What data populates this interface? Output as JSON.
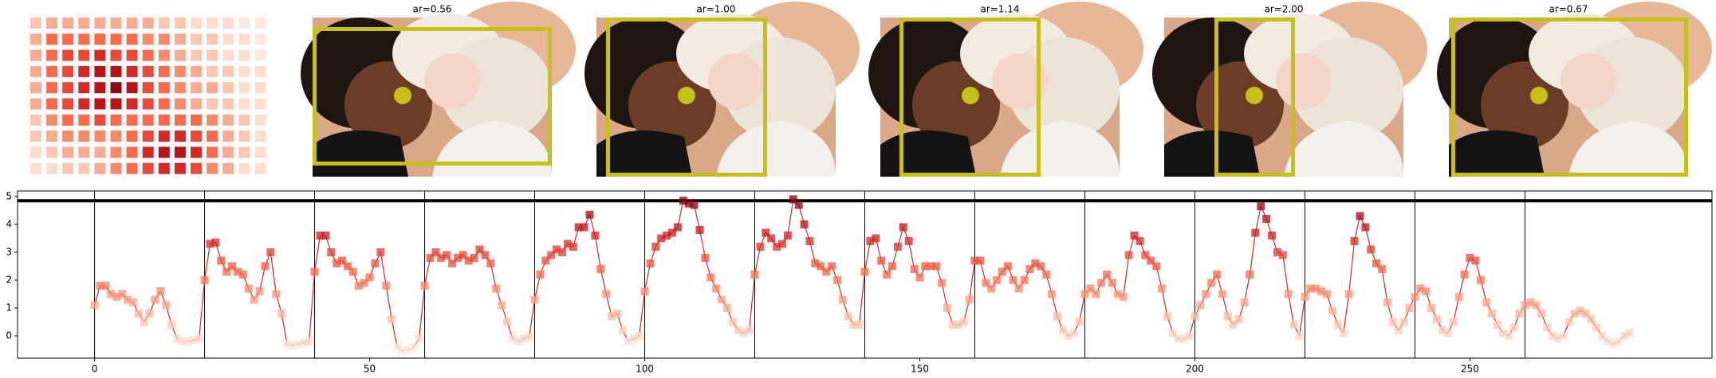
{
  "chart_data": [
    {
      "type": "heatmap",
      "cmap": "Reds",
      "values": [
        [
          0.2,
          0.3,
          0.3,
          0.3,
          0.3,
          0.3,
          0.3,
          0.3,
          0.2,
          0.2,
          0.1,
          0.1,
          0.1,
          0.05,
          0.05
        ],
        [
          0.3,
          0.5,
          0.5,
          0.5,
          0.5,
          0.5,
          0.5,
          0.4,
          0.4,
          0.3,
          0.2,
          0.2,
          0.1,
          0.1,
          0.05
        ],
        [
          0.3,
          0.5,
          0.6,
          0.6,
          0.7,
          0.6,
          0.6,
          0.5,
          0.4,
          0.3,
          0.2,
          0.2,
          0.1,
          0.1,
          0.05
        ],
        [
          0.3,
          0.5,
          0.6,
          0.7,
          0.8,
          0.8,
          0.7,
          0.6,
          0.5,
          0.4,
          0.3,
          0.2,
          0.2,
          0.1,
          0.1
        ],
        [
          0.3,
          0.5,
          0.6,
          0.7,
          0.8,
          0.9,
          0.8,
          0.6,
          0.5,
          0.4,
          0.3,
          0.3,
          0.2,
          0.1,
          0.1
        ],
        [
          0.3,
          0.5,
          0.6,
          0.7,
          0.8,
          0.8,
          0.7,
          0.6,
          0.5,
          0.4,
          0.3,
          0.2,
          0.2,
          0.1,
          0.1
        ],
        [
          0.2,
          0.4,
          0.5,
          0.5,
          0.6,
          0.5,
          0.5,
          0.5,
          0.5,
          0.5,
          0.5,
          0.4,
          0.3,
          0.2,
          0.1
        ],
        [
          0.2,
          0.3,
          0.4,
          0.4,
          0.4,
          0.4,
          0.5,
          0.6,
          0.7,
          0.7,
          0.6,
          0.5,
          0.3,
          0.2,
          0.1
        ],
        [
          0.1,
          0.2,
          0.3,
          0.3,
          0.3,
          0.4,
          0.5,
          0.7,
          0.8,
          0.8,
          0.7,
          0.5,
          0.3,
          0.2,
          0.1
        ],
        [
          0.1,
          0.1,
          0.2,
          0.2,
          0.3,
          0.4,
          0.5,
          0.6,
          0.7,
          0.7,
          0.6,
          0.4,
          0.3,
          0.1,
          0.1
        ]
      ]
    },
    {
      "type": "image",
      "title": "ar=0.56"
    },
    {
      "type": "image",
      "title": "ar=1.00"
    },
    {
      "type": "image",
      "title": "ar=1.14"
    },
    {
      "type": "image",
      "title": "ar=2.00"
    },
    {
      "type": "image",
      "title": "ar=0.67"
    },
    {
      "type": "line",
      "color": "#d62728",
      "cmap": "Reds",
      "xlim": [
        -14,
        294
      ],
      "ylim": [
        -0.8,
        5.2
      ],
      "xticks": [
        0,
        50,
        100,
        150,
        200,
        250
      ],
      "yticks": [
        0,
        1,
        2,
        3,
        4,
        5
      ],
      "vlines": [
        0,
        20,
        40,
        60,
        80,
        100,
        120,
        140,
        160,
        180,
        200,
        220,
        240,
        260
      ],
      "hline": 4.85,
      "x": [
        0,
        1,
        2,
        3,
        4,
        5,
        6,
        7,
        8,
        9,
        10,
        11,
        12,
        13,
        14,
        15,
        16,
        17,
        18,
        19,
        20,
        21,
        22,
        23,
        24,
        25,
        26,
        27,
        28,
        29,
        30,
        31,
        32,
        33,
        34,
        35,
        36,
        37,
        38,
        39,
        40,
        41,
        42,
        43,
        44,
        45,
        46,
        47,
        48,
        49,
        50,
        51,
        52,
        53,
        54,
        55,
        56,
        57,
        58,
        59,
        60,
        61,
        62,
        63,
        64,
        65,
        66,
        67,
        68,
        69,
        70,
        71,
        72,
        73,
        74,
        75,
        76,
        77,
        78,
        79,
        80,
        81,
        82,
        83,
        84,
        85,
        86,
        87,
        88,
        89,
        90,
        91,
        92,
        93,
        94,
        95,
        96,
        97,
        98,
        99,
        100,
        101,
        102,
        103,
        104,
        105,
        106,
        107,
        108,
        109,
        110,
        111,
        112,
        113,
        114,
        115,
        116,
        117,
        118,
        119,
        120,
        121,
        122,
        123,
        124,
        125,
        126,
        127,
        128,
        129,
        130,
        131,
        132,
        133,
        134,
        135,
        136,
        137,
        138,
        139,
        140,
        141,
        142,
        143,
        144,
        145,
        146,
        147,
        148,
        149,
        150,
        151,
        152,
        153,
        154,
        155,
        156,
        157,
        158,
        159,
        160,
        161,
        162,
        163,
        164,
        165,
        166,
        167,
        168,
        169,
        170,
        171,
        172,
        173,
        174,
        175,
        176,
        177,
        178,
        179,
        180,
        181,
        182,
        183,
        184,
        185,
        186,
        187,
        188,
        189,
        190,
        191,
        192,
        193,
        194,
        195,
        196,
        197,
        198,
        199,
        200,
        201,
        202,
        203,
        204,
        205,
        206,
        207,
        208,
        209,
        210,
        211,
        212,
        213,
        214,
        215,
        216,
        217,
        218,
        219,
        220,
        221,
        222,
        223,
        224,
        225,
        226,
        227,
        228,
        229,
        230,
        231,
        232,
        233,
        234,
        235,
        236,
        237,
        238,
        239,
        240,
        241,
        242,
        243,
        244,
        245,
        246,
        247,
        248,
        249,
        250,
        251,
        252,
        253,
        254,
        255,
        256,
        257,
        258,
        259,
        260,
        261,
        262,
        263,
        264,
        265,
        266,
        267,
        268,
        269,
        270,
        271,
        272,
        273,
        274,
        275,
        276,
        277,
        278,
        279
      ],
      "values": [
        1.1,
        1.8,
        1.8,
        1.5,
        1.4,
        1.5,
        1.3,
        1.2,
        0.8,
        0.5,
        0.8,
        1.3,
        1.6,
        1.1,
        0.4,
        -0.1,
        -0.2,
        -0.2,
        -0.15,
        -0.1,
        2.0,
        3.3,
        3.35,
        2.7,
        2.3,
        2.5,
        2.3,
        2.2,
        1.7,
        1.3,
        1.6,
        2.5,
        3.0,
        1.5,
        0.8,
        -0.3,
        -0.35,
        -0.3,
        -0.25,
        -0.2,
        2.3,
        3.6,
        3.6,
        3.0,
        2.6,
        2.7,
        2.5,
        2.3,
        1.8,
        1.9,
        2.1,
        2.6,
        3.0,
        1.8,
        0.6,
        -0.4,
        -0.55,
        -0.5,
        -0.4,
        -0.1,
        1.8,
        2.8,
        3.0,
        2.8,
        2.9,
        2.6,
        2.8,
        2.9,
        2.7,
        2.8,
        3.1,
        2.9,
        2.6,
        1.7,
        1.1,
        0.5,
        -0.1,
        -0.2,
        -0.1,
        -0.05,
        1.3,
        2.2,
        2.7,
        2.9,
        3.1,
        3.0,
        3.3,
        3.2,
        3.9,
        3.9,
        4.35,
        3.6,
        2.4,
        1.5,
        0.7,
        0.8,
        0.2,
        -0.2,
        -0.1,
        0.0,
        1.6,
        2.6,
        3.2,
        3.5,
        3.6,
        3.7,
        3.9,
        4.85,
        4.75,
        4.7,
        3.8,
        2.8,
        2.1,
        1.7,
        1.3,
        1.0,
        0.5,
        0.2,
        0.1,
        0.2,
        2.2,
        3.2,
        3.7,
        3.5,
        3.2,
        3.3,
        3.6,
        4.9,
        4.7,
        4.0,
        3.4,
        2.6,
        2.5,
        2.3,
        2.5,
        2.0,
        1.3,
        0.7,
        0.4,
        0.4,
        2.3,
        3.4,
        3.5,
        2.7,
        2.2,
        2.5,
        3.2,
        3.9,
        3.4,
        2.4,
        2.1,
        2.5,
        2.5,
        2.5,
        1.9,
        1.0,
        0.4,
        0.4,
        0.5,
        1.3,
        2.7,
        2.7,
        1.9,
        1.7,
        2.0,
        2.3,
        2.5,
        2.0,
        1.7,
        2.0,
        2.4,
        2.6,
        2.5,
        2.2,
        1.5,
        0.7,
        0.2,
        0.0,
        0.1,
        0.5,
        1.5,
        1.7,
        1.5,
        1.9,
        2.2,
        1.9,
        1.5,
        1.4,
        2.9,
        3.6,
        3.4,
        2.9,
        2.7,
        2.5,
        1.7,
        0.7,
        0.1,
        -0.1,
        -0.1,
        0.0,
        0.7,
        1.1,
        1.5,
        1.9,
        2.2,
        1.5,
        0.7,
        0.4,
        0.6,
        1.2,
        2.2,
        3.7,
        4.65,
        4.2,
        3.6,
        3.0,
        2.9,
        1.5,
        0.4,
        0.0,
        1.4,
        1.7,
        1.7,
        1.6,
        1.5,
        0.9,
        0.4,
        0.1,
        1.5,
        3.4,
        4.3,
        3.9,
        3.1,
        2.6,
        2.4,
        1.2,
        0.5,
        0.2,
        0.5,
        1.0,
        1.4,
        1.7,
        1.6,
        1.0,
        0.6,
        0.2,
        0.1,
        0.5,
        1.4,
        2.2,
        2.8,
        2.7,
        2.0,
        1.2,
        0.8,
        0.4,
        0.1,
        0.0,
        0.3,
        0.8,
        1.1,
        1.2,
        1.1,
        0.8,
        0.3,
        0.0,
        -0.1,
        0.0,
        0.5,
        0.8,
        0.9,
        0.8,
        0.6,
        0.3,
        0.0,
        -0.2,
        -0.3,
        -0.2,
        0.0,
        0.1
      ]
    }
  ]
}
